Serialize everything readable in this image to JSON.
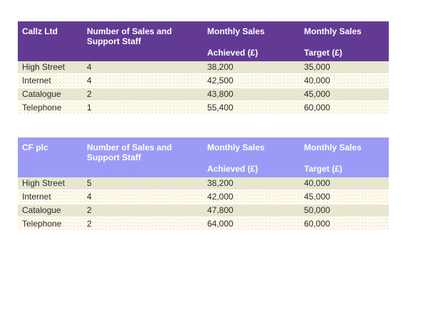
{
  "page": {
    "background_color": "#ffffff",
    "body_text_color": "#2b2b2b",
    "row_dark_color": "#e6e6cc",
    "row_light_color": "#fffdf0"
  },
  "tables": [
    {
      "title": "Callz Ltd",
      "header_bg": "#623a94",
      "header_text_color": "#ffffff",
      "columns": [
        {
          "top": "Callz Ltd",
          "bottom": ""
        },
        {
          "top": "Number of Sales and Support Staff",
          "bottom": ""
        },
        {
          "top": "Monthly Sales",
          "bottom": "Achieved (£)"
        },
        {
          "top": "Monthly Sales",
          "bottom": "Target (£)"
        }
      ],
      "rows": [
        {
          "channel": "High Street",
          "staff": "4",
          "achieved": "38,200",
          "target": "35,000"
        },
        {
          "channel": "Internet",
          "staff": "4",
          "achieved": "42,500",
          "target": "40,000"
        },
        {
          "channel": "Catalogue",
          "staff": "2",
          "achieved": "43,800",
          "target": "45,000"
        },
        {
          "channel": "Telephone",
          "staff": "1",
          "achieved": "55,400",
          "target": "60,000"
        }
      ]
    },
    {
      "title": "CF plc",
      "header_bg": "#9b9bf7",
      "header_text_color": "#ffffff",
      "columns": [
        {
          "top": "CF plc",
          "bottom": ""
        },
        {
          "top": "Number of Sales and Support Staff",
          "bottom": ""
        },
        {
          "top": "Monthly Sales",
          "bottom": "Achieved (£)"
        },
        {
          "top": "Monthly Sales",
          "bottom": "Target (£)"
        }
      ],
      "rows": [
        {
          "channel": "High Street",
          "staff": "5",
          "achieved": "38,200",
          "target": "40,000"
        },
        {
          "channel": "Internet",
          "staff": "4",
          "achieved": "42,000",
          "target": "45,000"
        },
        {
          "channel": "Catalogue",
          "staff": "2",
          "achieved": "47,800",
          "target": "50,000"
        },
        {
          "channel": "Telephone",
          "staff": "2",
          "achieved": "64,000",
          "target": "60,000"
        }
      ]
    }
  ]
}
